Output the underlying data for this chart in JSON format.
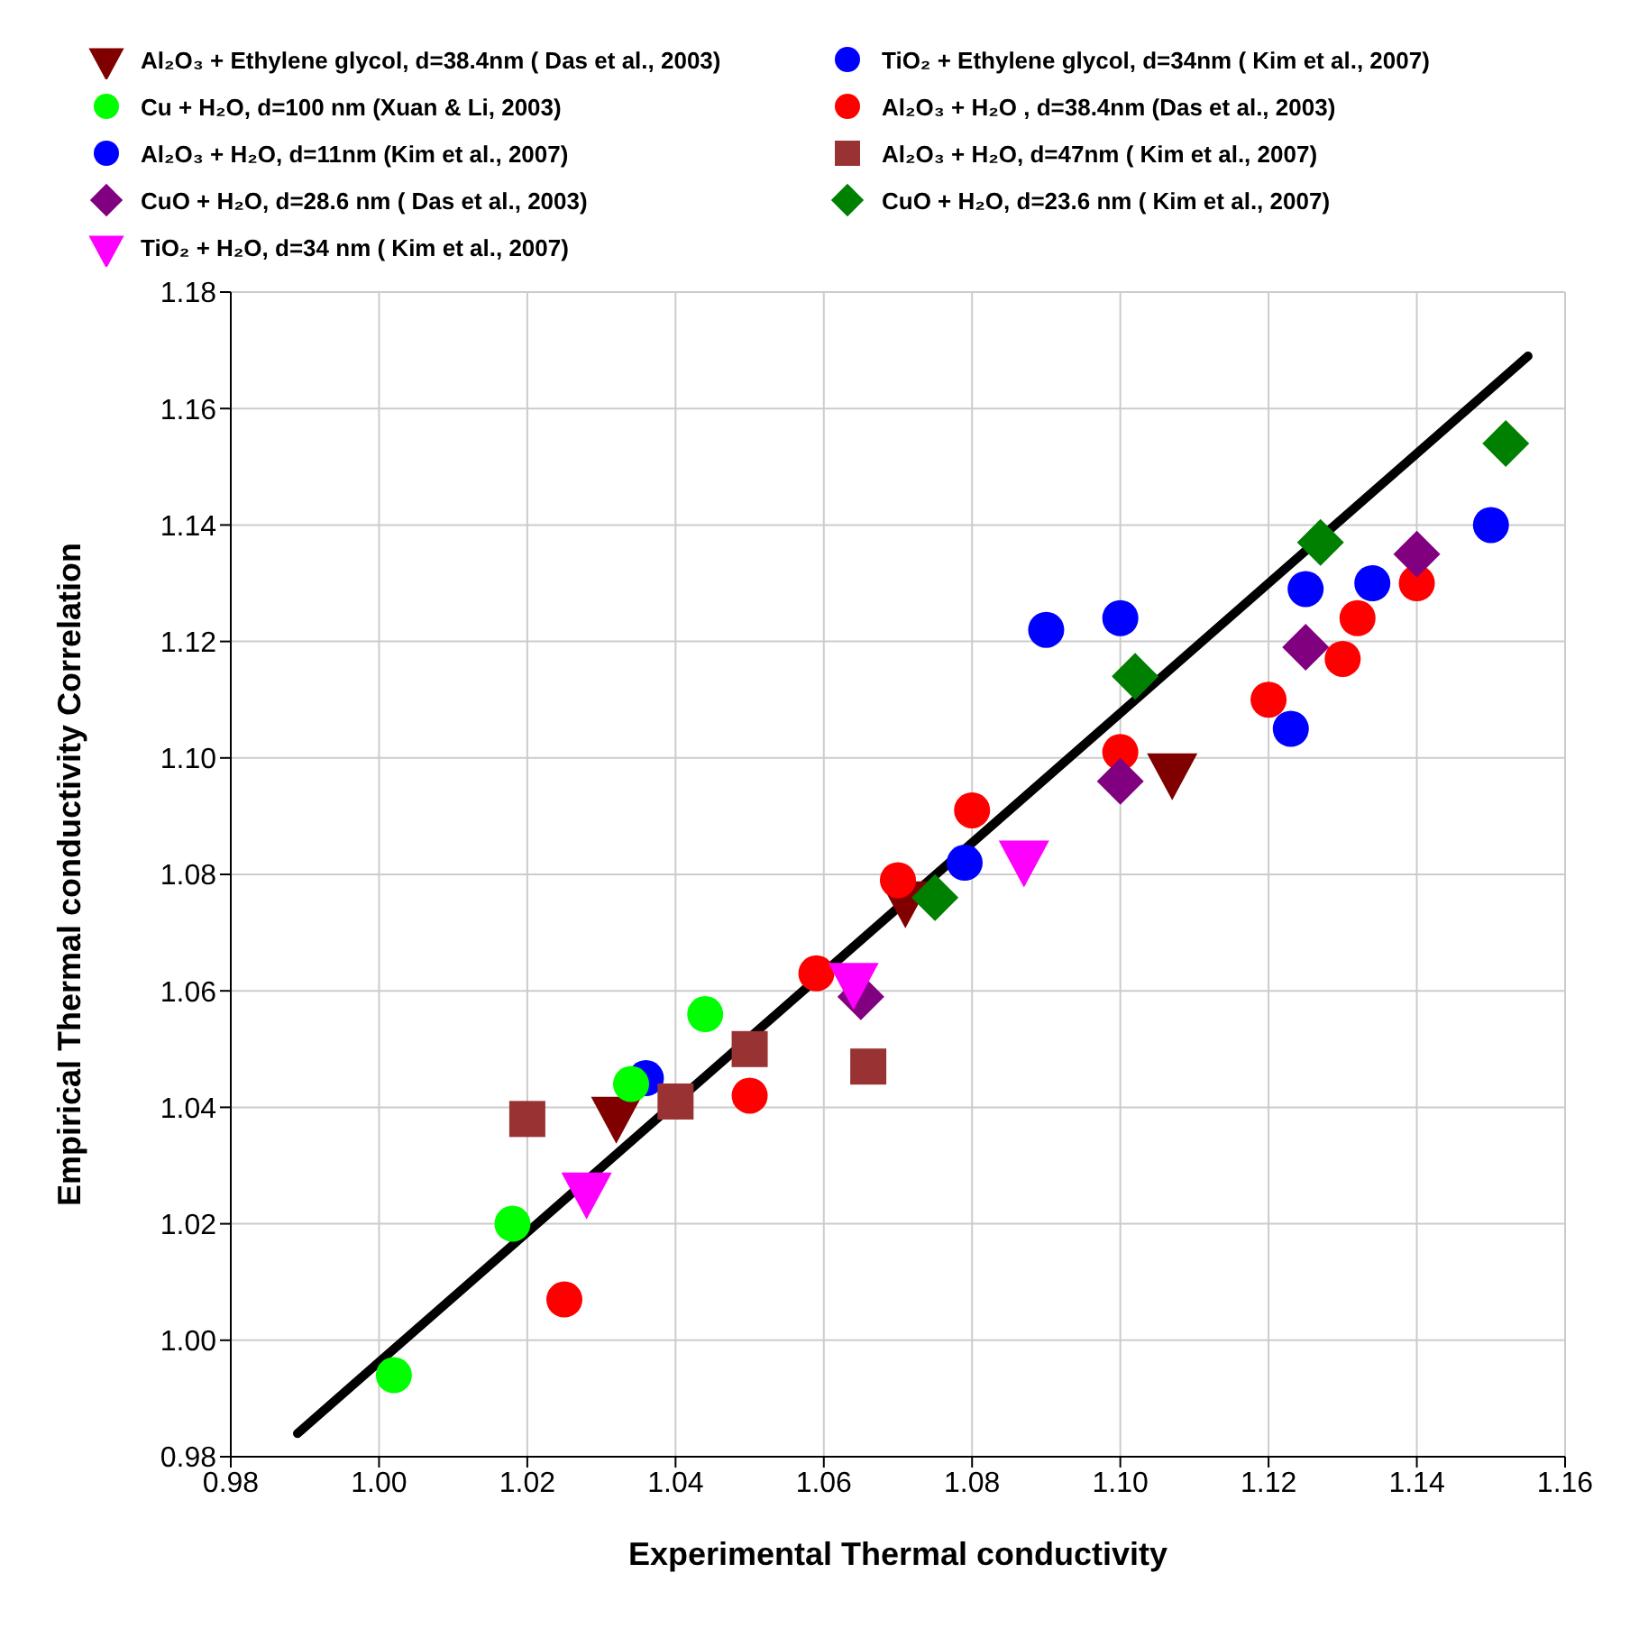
{
  "chart_data": {
    "type": "scatter",
    "xlabel": "Experimental Thermal conductivity",
    "ylabel": "Empirical Thermal conductivity Correlation",
    "xlim": [
      0.98,
      1.16
    ],
    "ylim": [
      0.98,
      1.18
    ],
    "xticks": [
      {
        "value": 0.98,
        "label": "0.98"
      },
      {
        "value": 1.0,
        "label": "1.00"
      },
      {
        "value": 1.02,
        "label": "1.02"
      },
      {
        "value": 1.04,
        "label": "1.04"
      },
      {
        "value": 1.06,
        "label": "1.06"
      },
      {
        "value": 1.08,
        "label": "1.08"
      },
      {
        "value": 1.1,
        "label": "1.10"
      },
      {
        "value": 1.12,
        "label": "1.12"
      },
      {
        "value": 1.14,
        "label": "1.14"
      },
      {
        "value": 1.16,
        "label": "1.16"
      }
    ],
    "yticks": [
      {
        "value": 0.98,
        "label": "0.98"
      },
      {
        "value": 1.0,
        "label": "1.00"
      },
      {
        "value": 1.02,
        "label": "1.02"
      },
      {
        "value": 1.04,
        "label": "1.04"
      },
      {
        "value": 1.06,
        "label": "1.06"
      },
      {
        "value": 1.08,
        "label": "1.08"
      },
      {
        "value": 1.1,
        "label": "1.10"
      },
      {
        "value": 1.12,
        "label": "1.12"
      },
      {
        "value": 1.14,
        "label": "1.14"
      },
      {
        "value": 1.16,
        "label": "1.16"
      },
      {
        "value": 1.18,
        "label": "1.18"
      }
    ],
    "grid": true,
    "legend": "top",
    "series": [
      {
        "name": "Al₂O₃ + Ethylene glycol, d=38.4nm ( Das et al., 2003)",
        "color": "#800000",
        "marker": "triangle",
        "x": [
          1.032,
          1.071,
          1.107
        ],
        "values": [
          1.039,
          1.076,
          1.098
        ]
      },
      {
        "name": "TiO₂ + Ethylene glycol, d=34nm ( Kim et al.,  2007)",
        "color": "#0000ff",
        "marker": "circle",
        "x": [
          1.036,
          1.079,
          1.123
        ],
        "values": [
          1.045,
          1.082,
          1.105
        ]
      },
      {
        "name": "Cu + H₂O, d=100 nm (Xuan & Li, 2003)",
        "color": "#00ff00",
        "marker": "circle",
        "x": [
          1.002,
          1.018,
          1.034,
          1.044
        ],
        "values": [
          0.994,
          1.02,
          1.044,
          1.056
        ]
      },
      {
        "name": "Al₂O₃ + H₂O , d=38.4nm (Das et al., 2003)",
        "color": "#ff0000",
        "marker": "circle",
        "x": [
          1.025,
          1.05,
          1.059,
          1.07,
          1.08,
          1.1,
          1.12,
          1.13,
          1.132,
          1.14
        ],
        "values": [
          1.007,
          1.042,
          1.063,
          1.079,
          1.091,
          1.101,
          1.11,
          1.117,
          1.124,
          1.13
        ]
      },
      {
        "name": "Al₂O₃ + H₂O, d=11nm (Kim et al., 2007)",
        "color": "#0000ff",
        "marker": "circle",
        "x": [
          1.09,
          1.1,
          1.125,
          1.134,
          1.15
        ],
        "values": [
          1.122,
          1.124,
          1.129,
          1.13,
          1.14
        ]
      },
      {
        "name": "Al₂O₃ + H₂O, d=47nm ( Kim et al., 2007)",
        "color": "#993333",
        "marker": "square",
        "x": [
          1.02,
          1.04,
          1.05,
          1.066
        ],
        "values": [
          1.038,
          1.041,
          1.05,
          1.047
        ]
      },
      {
        "name": "CuO + H₂O, d=28.6 nm ( Das et al., 2003)",
        "color": "#800080",
        "marker": "diamond",
        "x": [
          1.065,
          1.1,
          1.125,
          1.14
        ],
        "values": [
          1.059,
          1.096,
          1.119,
          1.135
        ]
      },
      {
        "name": "CuO + H₂O, d=23.6 nm ( Kim et al., 2007)",
        "color": "#008000",
        "marker": "diamond",
        "x": [
          1.075,
          1.102,
          1.127,
          1.152
        ],
        "values": [
          1.076,
          1.114,
          1.137,
          1.154
        ]
      },
      {
        "name": "TiO₂ + H₂O, d=34 nm ( Kim et al., 2007)",
        "color": "#ff00ff",
        "marker": "triangle",
        "x": [
          1.028,
          1.064,
          1.087
        ],
        "values": [
          1.026,
          1.062,
          1.083
        ]
      },
      {
        "type": "line",
        "color": "#000000",
        "marker": "none",
        "line_style": "solid",
        "x": [
          0.989,
          1.155
        ],
        "values": [
          0.984,
          1.169
        ]
      }
    ]
  }
}
